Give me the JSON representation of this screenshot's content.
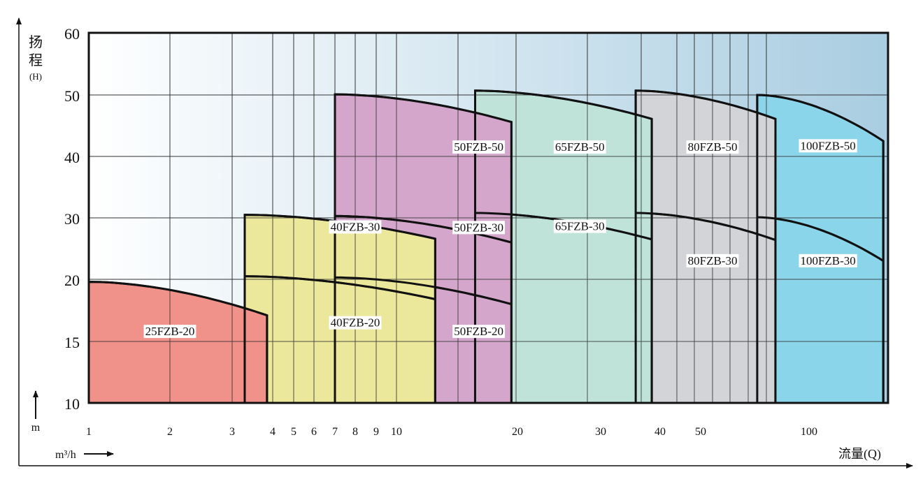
{
  "chart_data": {
    "type": "area",
    "title": "",
    "ylabel_chars": [
      "扬",
      "程"
    ],
    "ylabel_unit": "(H)",
    "y_unit": "m",
    "xlabel": "流量(Q)",
    "x_unit": "m³/h",
    "y_ticks": [
      10,
      15,
      20,
      30,
      40,
      50,
      60
    ],
    "x_ticks": [
      1,
      2,
      3,
      4,
      5,
      6,
      7,
      8,
      9,
      10,
      20,
      30,
      40,
      50,
      100
    ],
    "ylim": [
      10,
      60
    ],
    "grid": true,
    "colors": {
      "25FZB": "#f0918a",
      "40FZB": "#ebe79b",
      "50FZB": "#d4a6cb",
      "65FZB": "#bfe3d8",
      "80FZB": "#d3d4d8",
      "100FZB": "#8ad5ea",
      "bg_start": "#ffffff",
      "bg_end": "#a9cde1"
    },
    "groups": [
      {
        "name": "25FZB",
        "q_range": [
          1,
          3.86
        ],
        "curves": [
          {
            "model": "25FZB-20",
            "head_start": 19.8,
            "head_end": 17.1,
            "label_q": 2.0,
            "label_h": 15.5
          }
        ]
      },
      {
        "name": "40FZB",
        "q_range": [
          3.31,
          13.2
        ],
        "curves": [
          {
            "model": "40FZB-30",
            "head_start": 30.5,
            "head_end": 26.6,
            "label_q": 8.0,
            "label_h": 27.9
          },
          {
            "model": "40FZB-20",
            "head_start": 20.5,
            "head_end": 18.4,
            "label_q": 8.0,
            "label_h": 16.2
          }
        ]
      },
      {
        "name": "50FZB",
        "q_range": [
          7,
          19.5
        ],
        "curves": [
          {
            "model": "50FZB-50",
            "head_start": 50.1,
            "head_end": 45.6,
            "label_q": 16.8,
            "label_h": 40.9
          },
          {
            "model": "50FZB-30",
            "head_start": 30.3,
            "head_end": 26.0,
            "label_q": 16.8,
            "label_h": 27.8
          },
          {
            "model": "50FZB-20",
            "head_start": 20.3,
            "head_end": 18.0,
            "label_q": 16.8,
            "label_h": 15.5
          }
        ]
      },
      {
        "name": "65FZB",
        "q_range": [
          16.5,
          38.6
        ],
        "curves": [
          {
            "model": "65FZB-50",
            "head_start": 50.7,
            "head_end": 46.1,
            "label_q": 27.5,
            "label_h": 40.9
          },
          {
            "model": "65FZB-30",
            "head_start": 30.8,
            "head_end": 26.5,
            "label_q": 27.5,
            "label_h": 28.0
          }
        ]
      },
      {
        "name": "80FZB",
        "q_range": [
          35.9,
          84.5
        ],
        "curves": [
          {
            "model": "80FZB-50",
            "head_start": 50.7,
            "head_end": 46.1,
            "label_q": 55.5,
            "label_h": 40.9
          },
          {
            "model": "80FZB-30",
            "head_start": 30.8,
            "head_end": 26.4,
            "label_q": 55.5,
            "label_h": 22.4
          }
        ]
      },
      {
        "name": "100FZB",
        "q_range": [
          76.1,
          147
        ],
        "curves": [
          {
            "model": "100FZB-50",
            "head_start": 50.0,
            "head_end": 42.5,
            "label_q": 112,
            "label_h": 41.1
          },
          {
            "model": "100FZB-30",
            "head_start": 30.1,
            "head_end": 23.0,
            "label_q": 112,
            "label_h": 22.4
          }
        ]
      }
    ]
  }
}
